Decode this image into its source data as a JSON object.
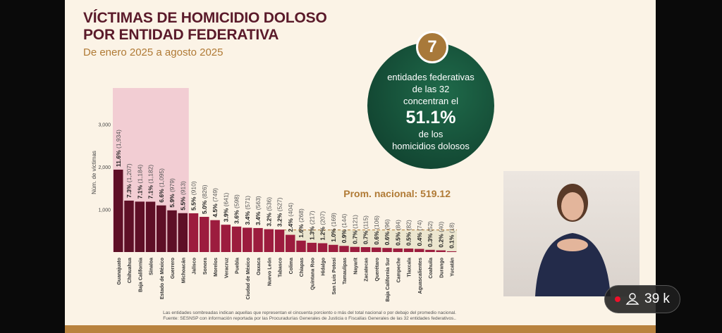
{
  "title_lines": [
    "VÍCTIMAS DE HOMICIDIO DOLOSO",
    "POR ENTIDAD FEDERATIVA"
  ],
  "subtitle": "De enero 2025 a agosto 2025",
  "highlight": {
    "number": "7",
    "line1": "entidades federativas",
    "line2": "de las 32",
    "line3": "concentran el",
    "value": "51.1%",
    "line4": "de los",
    "line5": "homicidios dolosos"
  },
  "average_label": "Prom. nacional: 519.12",
  "footnotes": [
    "Las entidades sombreadas indican aquellas que representan el cincuenta porciento o más del total nacional o por debajo del promedio nacional.",
    "Fuente: SESNSP con información reportada por las Procuradurías Generales de Justicia o Fiscalías Generales de las 32 entidades federativos.."
  ],
  "viewers": "39 k",
  "colors": {
    "top": "#5e0f26",
    "rest": "#9c1c3e",
    "shade_top": "#f2cdd3",
    "shade_low": "#ece6cf",
    "accent": "#b07a35"
  },
  "chart_data": {
    "type": "bar",
    "ylabel": "Núm. de víctimas",
    "ylim": [
      0,
      3600
    ],
    "yticks": [
      1000,
      2000,
      3000
    ],
    "ytick_labels": [
      "1,000",
      "2,000",
      "3,000"
    ],
    "average": 519.12,
    "categories": [
      "Guanajuato",
      "Chihuahua",
      "Baja California",
      "Sinaloa",
      "Estado de México",
      "Guerrero",
      "Michoacán",
      "Jalisco",
      "Sonora",
      "Morelos",
      "Veracruz",
      "Puebla",
      "Ciudad de México",
      "Oaxaca",
      "Nuevo León",
      "Tabasco",
      "Colima",
      "Chiapas",
      "Quintana Roo",
      "Hidalgo",
      "San Luis Potosí",
      "Tamaulipas",
      "Nayarit",
      "Zacatecas",
      "Querétaro",
      "Baja California Sur",
      "Campeche",
      "Tlaxcala",
      "Aguascalientes",
      "Coahuila",
      "Durango",
      "Yucatán"
    ],
    "values": [
      1934,
      1207,
      1184,
      1182,
      1095,
      979,
      913,
      910,
      826,
      749,
      641,
      598,
      571,
      563,
      536,
      527,
      404,
      268,
      217,
      207,
      169,
      144,
      121,
      115,
      106,
      96,
      84,
      82,
      74,
      52,
      40,
      18
    ],
    "value_labels": [
      "(1,934)",
      "(1,207)",
      "(1,184)",
      "(1,182)",
      "(1,095)",
      "(979)",
      "(913)",
      "(910)",
      "(826)",
      "(749)",
      "(641)",
      "(598)",
      "(571)",
      "(563)",
      "(536)",
      "(527)",
      "(404)",
      "(268)",
      "(217)",
      "(207)",
      "(169)",
      "(144)",
      "(121)",
      "(115)",
      "(106)",
      "(96)",
      "(84)",
      "(82)",
      "(74)",
      "(52)",
      "(40)",
      "(18)"
    ],
    "percents": [
      "11.6%",
      "7.3%",
      "7.1%",
      "7.1%",
      "6.6%",
      "5.9%",
      "5.5%",
      "5.5%",
      "5.0%",
      "4.5%",
      "3.9%",
      "3.6%",
      "3.4%",
      "3.4%",
      "3.2%",
      "3.2%",
      "2.4%",
      "1.6%",
      "1.3%",
      "1.2%",
      "1.0%",
      "0.9%",
      "0.7%",
      "0.7%",
      "0.6%",
      "0.6%",
      "0.5%",
      "0.5%",
      "0.4%",
      "0.3%",
      "0.2%",
      "0.1%"
    ],
    "top_count": 7
  }
}
